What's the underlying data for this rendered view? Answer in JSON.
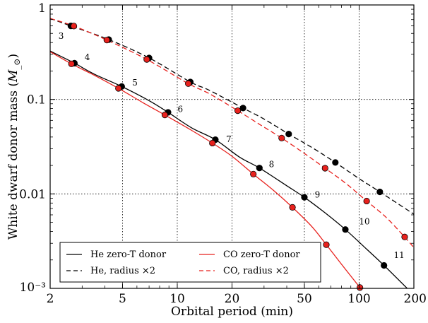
{
  "chart_data": {
    "type": "line",
    "xlabel": "Orbital period (min)",
    "ylabel": "White dwarf donor mass (M_⊙)",
    "xscale": "log",
    "yscale": "log",
    "xlim": [
      2,
      200
    ],
    "ylim": [
      0.001,
      1
    ],
    "grid": "dotted, at major ticks",
    "legend": "bottom, inside plot",
    "x_ticks": [
      {
        "value": 2,
        "label": "2"
      },
      {
        "value": 5,
        "label": "5"
      },
      {
        "value": 10,
        "label": "10"
      },
      {
        "value": 20,
        "label": "20"
      },
      {
        "value": 50,
        "label": "50"
      },
      {
        "value": 100,
        "label": "100"
      },
      {
        "value": 200,
        "label": "200"
      }
    ],
    "y_ticks": [
      {
        "value": 0.001,
        "label": "10⁻³"
      },
      {
        "value": 0.01,
        "label": "0.01"
      },
      {
        "value": 0.1,
        "label": "0.1"
      },
      {
        "value": 1,
        "label": "1"
      }
    ],
    "series": [
      {
        "name": "He zero-T donor",
        "color": "#000000",
        "dash": "solid",
        "x": [
          2.0,
          2.72,
          3.5,
          4.95,
          7.0,
          8.9,
          12.0,
          16.2,
          22.0,
          28.3,
          40.0,
          50.0,
          65.0,
          84.0,
          110.0,
          137.0,
          200.0
        ],
        "y": [
          0.325,
          0.242,
          0.185,
          0.137,
          0.097,
          0.073,
          0.05,
          0.0375,
          0.0245,
          0.0188,
          0.0122,
          0.0092,
          0.0063,
          0.0042,
          0.0026,
          0.00175,
          0.00085
        ],
        "markers_x": [
          2.72,
          4.95,
          8.9,
          16.2,
          28.3,
          50.0,
          84.0,
          137.0
        ],
        "markers_y": [
          0.242,
          0.137,
          0.073,
          0.0375,
          0.0188,
          0.0092,
          0.0042,
          0.00175
        ]
      },
      {
        "name": "He, radius ×2",
        "color": "#000000",
        "dash": "dashed",
        "x": [
          2.0,
          2.6,
          4.2,
          7.0,
          11.8,
          15.0,
          23.0,
          30.0,
          41.0,
          55.0,
          74.0,
          100.0,
          130.0,
          200.0
        ],
        "y": [
          0.72,
          0.6,
          0.43,
          0.275,
          0.153,
          0.125,
          0.081,
          0.062,
          0.043,
          0.031,
          0.0215,
          0.0145,
          0.0105,
          0.0061
        ],
        "markers_x": [
          2.6,
          4.2,
          7.0,
          11.8,
          23.0,
          41.0,
          74.0,
          130.0
        ],
        "markers_y": [
          0.6,
          0.43,
          0.275,
          0.153,
          0.081,
          0.043,
          0.0215,
          0.0105
        ]
      },
      {
        "name": "CO zero-T donor",
        "color": "#e8211d",
        "dash": "solid",
        "x": [
          2.0,
          2.62,
          3.5,
          4.75,
          6.5,
          8.55,
          12.0,
          15.6,
          20.0,
          26.2,
          34.0,
          43.0,
          55.0,
          66.0,
          80.0,
          101.0
        ],
        "y": [
          0.32,
          0.238,
          0.18,
          0.131,
          0.092,
          0.0685,
          0.047,
          0.0345,
          0.025,
          0.0162,
          0.0108,
          0.0072,
          0.0045,
          0.0029,
          0.0018,
          0.00102
        ],
        "markers_x": [
          2.62,
          4.75,
          8.55,
          15.6,
          26.2,
          43.0,
          66.0,
          101.0
        ],
        "markers_y": [
          0.238,
          0.131,
          0.0685,
          0.0345,
          0.0162,
          0.0072,
          0.0029,
          0.00102
        ]
      },
      {
        "name": "CO, radius ×2",
        "color": "#e8211d",
        "dash": "dashed",
        "x": [
          2.0,
          2.7,
          4.1,
          6.8,
          11.5,
          15.0,
          21.5,
          29.0,
          37.5,
          50.0,
          65.0,
          85.0,
          110.0,
          140.0,
          178.0,
          200.0
        ],
        "y": [
          0.72,
          0.598,
          0.425,
          0.265,
          0.147,
          0.115,
          0.076,
          0.053,
          0.039,
          0.0268,
          0.0187,
          0.0128,
          0.0084,
          0.0057,
          0.0035,
          0.0027
        ],
        "markers_x": [
          2.7,
          4.1,
          6.8,
          11.5,
          21.5,
          37.5,
          65.0,
          110.0,
          178.0
        ],
        "markers_y": [
          0.598,
          0.425,
          0.265,
          0.147,
          0.076,
          0.039,
          0.0187,
          0.0084,
          0.0035
        ]
      }
    ],
    "annotations": [
      {
        "text": "3",
        "x": 2.3,
        "y": 0.47
      },
      {
        "text": "4",
        "x": 3.2,
        "y": 0.28
      },
      {
        "text": "5",
        "x": 5.85,
        "y": 0.15
      },
      {
        "text": "6",
        "x": 10.4,
        "y": 0.079
      },
      {
        "text": "7",
        "x": 19.2,
        "y": 0.038
      },
      {
        "text": "8",
        "x": 33.0,
        "y": 0.0205
      },
      {
        "text": "9",
        "x": 59.0,
        "y": 0.0098
      },
      {
        "text": "10",
        "x": 107.0,
        "y": 0.0051
      },
      {
        "text": "11",
        "x": 166.0,
        "y": 0.00225
      }
    ]
  }
}
